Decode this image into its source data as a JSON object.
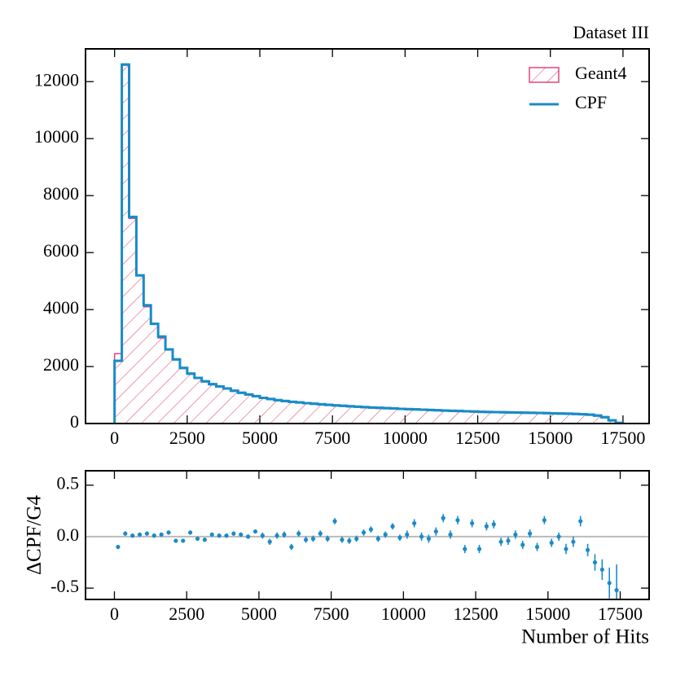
{
  "chart_data": [
    {
      "type": "histogram",
      "title": "Dataset III",
      "legend": "upper right",
      "bins": [
        0,
        250,
        500,
        750,
        1000,
        1250,
        1500,
        1750,
        2000,
        2250,
        2500,
        2750,
        3000,
        3250,
        3500,
        3750,
        4000,
        4250,
        4500,
        4750,
        5000,
        5250,
        5500,
        5750,
        6000,
        6250,
        6500,
        6750,
        7000,
        7250,
        7500,
        7750,
        8000,
        8250,
        8500,
        8750,
        9000,
        9250,
        9500,
        9750,
        10000,
        10250,
        10500,
        10750,
        11000,
        11250,
        11500,
        11750,
        12000,
        12250,
        12500,
        12750,
        13000,
        13250,
        13500,
        13750,
        14000,
        14250,
        14500,
        14750,
        15000,
        15250,
        15500,
        15750,
        16000,
        16250,
        16500,
        16750,
        17000,
        17250,
        17500
      ],
      "series": [
        {
          "name": "Geant4",
          "color": "#e0457b",
          "style": "hatch",
          "values": [
            2450,
            12600,
            7200,
            5200,
            4100,
            3500,
            3000,
            2600,
            2250,
            1950,
            1750,
            1600,
            1480,
            1380,
            1300,
            1230,
            1150,
            1080,
            1020,
            960,
            900,
            860,
            820,
            790,
            760,
            740,
            715,
            695,
            675,
            655,
            635,
            620,
            605,
            590,
            575,
            560,
            550,
            540,
            530,
            515,
            505,
            495,
            485,
            475,
            465,
            455,
            445,
            440,
            430,
            420,
            410,
            405,
            400,
            395,
            390,
            385,
            380,
            375,
            370,
            365,
            355,
            350,
            345,
            335,
            325,
            310,
            290,
            240,
            130,
            30
          ]
        },
        {
          "name": "CPF",
          "color": "#1a8bc8",
          "style": "step",
          "values": [
            2200,
            12600,
            7250,
            5200,
            4150,
            3500,
            3050,
            2600,
            2250,
            1950,
            1750,
            1600,
            1480,
            1380,
            1300,
            1230,
            1150,
            1080,
            1020,
            960,
            900,
            860,
            820,
            790,
            760,
            740,
            715,
            695,
            675,
            655,
            635,
            620,
            605,
            590,
            575,
            560,
            550,
            540,
            530,
            515,
            505,
            495,
            485,
            475,
            465,
            455,
            445,
            440,
            430,
            420,
            410,
            405,
            400,
            395,
            390,
            385,
            380,
            375,
            370,
            365,
            355,
            350,
            345,
            335,
            325,
            310,
            280,
            220,
            110,
            20
          ]
        }
      ],
      "xlim": [
        -1000,
        18400
      ],
      "xticks": [
        0,
        2500,
        5000,
        7500,
        10000,
        12500,
        15000,
        17500
      ],
      "ylim": [
        0,
        13150
      ],
      "yticks": [
        0,
        2000,
        4000,
        6000,
        8000,
        10000,
        12000
      ]
    },
    {
      "type": "errorbar",
      "ylabel": "ΔCPF/G4",
      "xlabel": "Number of Hits",
      "color": "#1a8bc8",
      "x": [
        125,
        375,
        625,
        875,
        1125,
        1375,
        1625,
        1875,
        2125,
        2375,
        2625,
        2875,
        3125,
        3375,
        3625,
        3875,
        4125,
        4375,
        4625,
        4875,
        5125,
        5375,
        5625,
        5875,
        6125,
        6375,
        6625,
        6875,
        7125,
        7375,
        7625,
        7875,
        8125,
        8375,
        8625,
        8875,
        9125,
        9375,
        9625,
        9875,
        10125,
        10375,
        10625,
        10875,
        11125,
        11375,
        11625,
        11875,
        12125,
        12375,
        12625,
        12875,
        13125,
        13375,
        13625,
        13875,
        14125,
        14375,
        14625,
        14875,
        15125,
        15375,
        15625,
        15875,
        16125,
        16375,
        16625,
        16875,
        17125,
        17375
      ],
      "values": [
        -0.1,
        0.03,
        0.01,
        0.02,
        0.03,
        0.01,
        0.02,
        0.04,
        -0.04,
        -0.04,
        0.04,
        -0.02,
        -0.03,
        0.02,
        0.01,
        0.01,
        0.03,
        0.02,
        0.0,
        0.05,
        0.01,
        -0.05,
        0.01,
        0.02,
        -0.1,
        0.03,
        -0.03,
        -0.02,
        0.03,
        -0.02,
        0.15,
        -0.03,
        -0.04,
        -0.02,
        0.04,
        0.07,
        -0.02,
        0.02,
        0.1,
        -0.01,
        0.02,
        0.13,
        0.0,
        -0.02,
        0.05,
        0.18,
        0.02,
        0.16,
        -0.12,
        0.13,
        -0.12,
        0.1,
        0.12,
        -0.05,
        -0.04,
        0.02,
        -0.08,
        0.03,
        -0.1,
        0.16,
        -0.06,
        0.0,
        -0.12,
        -0.05,
        0.15,
        -0.13,
        -0.25,
        -0.32,
        -0.45,
        -0.52
      ],
      "errors": [
        0.02,
        0.02,
        0.02,
        0.02,
        0.02,
        0.02,
        0.02,
        0.02,
        0.02,
        0.02,
        0.02,
        0.02,
        0.02,
        0.02,
        0.02,
        0.02,
        0.02,
        0.02,
        0.02,
        0.02,
        0.03,
        0.03,
        0.03,
        0.03,
        0.03,
        0.03,
        0.03,
        0.03,
        0.03,
        0.03,
        0.03,
        0.03,
        0.03,
        0.03,
        0.03,
        0.03,
        0.03,
        0.03,
        0.03,
        0.03,
        0.04,
        0.04,
        0.04,
        0.04,
        0.04,
        0.04,
        0.04,
        0.04,
        0.04,
        0.04,
        0.04,
        0.04,
        0.04,
        0.04,
        0.04,
        0.04,
        0.04,
        0.04,
        0.04,
        0.04,
        0.04,
        0.04,
        0.05,
        0.05,
        0.05,
        0.06,
        0.08,
        0.1,
        0.15,
        0.25
      ],
      "reference_line": 0,
      "xlim": [
        -1000,
        18500
      ],
      "xticks": [
        0,
        2500,
        5000,
        7500,
        10000,
        12500,
        15000,
        17500
      ],
      "ylim": [
        -0.61,
        0.64
      ],
      "yticks": [
        0.5,
        {
          "value": 0,
          "label": "0.0"
        },
        -0.5
      ]
    }
  ]
}
